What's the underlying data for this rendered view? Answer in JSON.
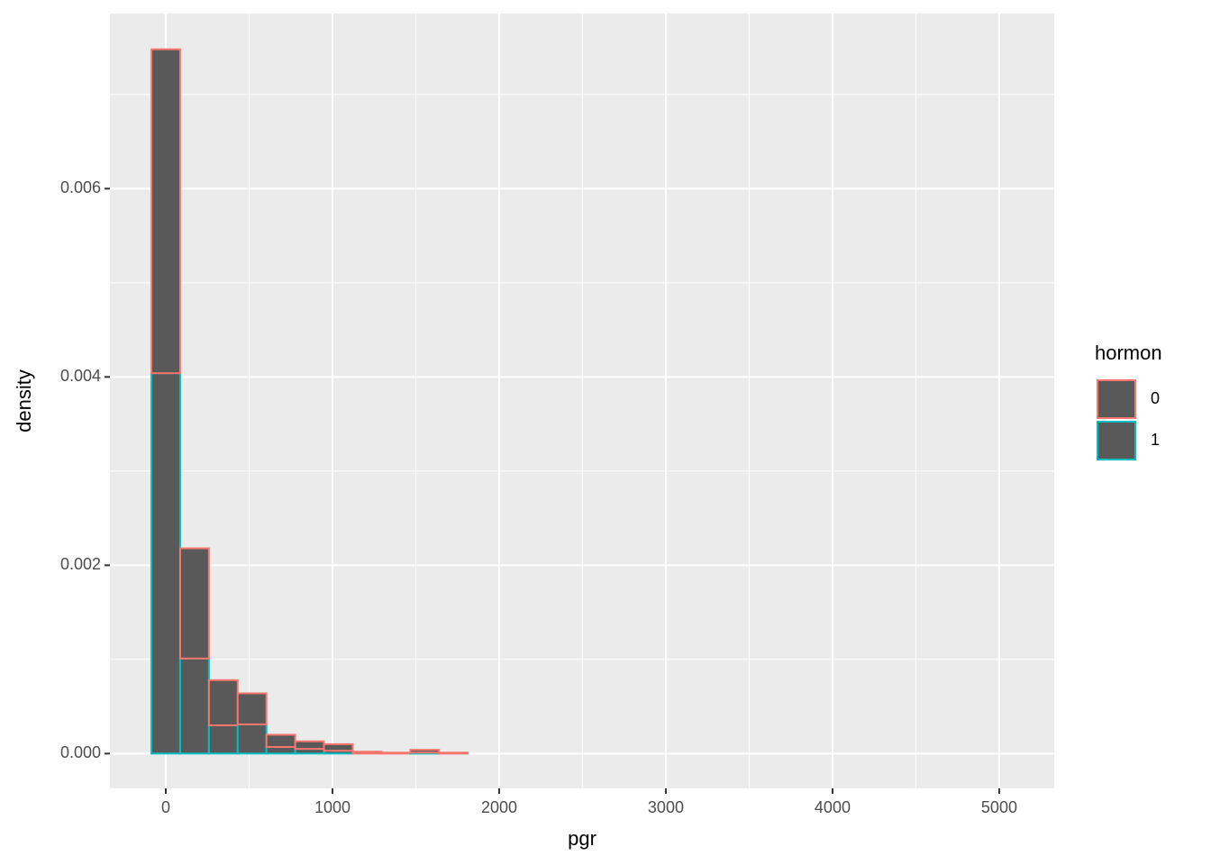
{
  "chart_data": {
    "type": "histogram",
    "x_label": "pgr",
    "y_label": "density",
    "legend_title": "hormon",
    "fill": "#595959",
    "bins": [
      -86.28,
      86.27,
      258.82,
      431.37,
      603.92,
      776.47,
      949.02,
      1121.57,
      1294.12,
      1466.67,
      1639.22,
      1811.77,
      1984.32,
      2156.87,
      2329.42,
      2501.97,
      2674.52,
      2847.07,
      3019.62,
      3192.17,
      3364.72,
      3537.27,
      3709.82,
      3882.37,
      4054.92,
      4227.47,
      4400.02,
      4572.57,
      4745.12,
      4917.67,
      5090.22
    ],
    "series": [
      {
        "name": "0",
        "color": "#f8766d",
        "values": [
          0.00344,
          0.00117,
          0.00048,
          0.00033,
          0.00013,
          8e-05,
          7e-05,
          2e-05,
          1e-05,
          3e-05,
          1e-05,
          0,
          0,
          0,
          0,
          0,
          0,
          0,
          0,
          0,
          0,
          0,
          0,
          0,
          0,
          0,
          0,
          0,
          0,
          0
        ]
      },
      {
        "name": "1",
        "color": "#00bfc4",
        "values": [
          0.00404,
          0.00101,
          0.0003,
          0.00031,
          7e-05,
          5e-05,
          3e-05,
          0,
          0,
          1e-05,
          0,
          0,
          0,
          0,
          0,
          0,
          0,
          0,
          0,
          0,
          0,
          0,
          0,
          0,
          0,
          0,
          0,
          0,
          0,
          0
        ]
      }
    ],
    "xlim": [
      -335,
      5330
    ],
    "ylim": [
      -0.00037,
      0.00786
    ],
    "xticks": [
      0,
      1000,
      2000,
      3000,
      4000,
      5000
    ],
    "yticks": [
      {
        "value": 0,
        "label": "0.000"
      },
      {
        "value": 0.002,
        "label": "0.002"
      },
      {
        "value": 0.004,
        "label": "0.004"
      },
      {
        "value": 0.006,
        "label": "0.006"
      }
    ],
    "grid": true
  }
}
